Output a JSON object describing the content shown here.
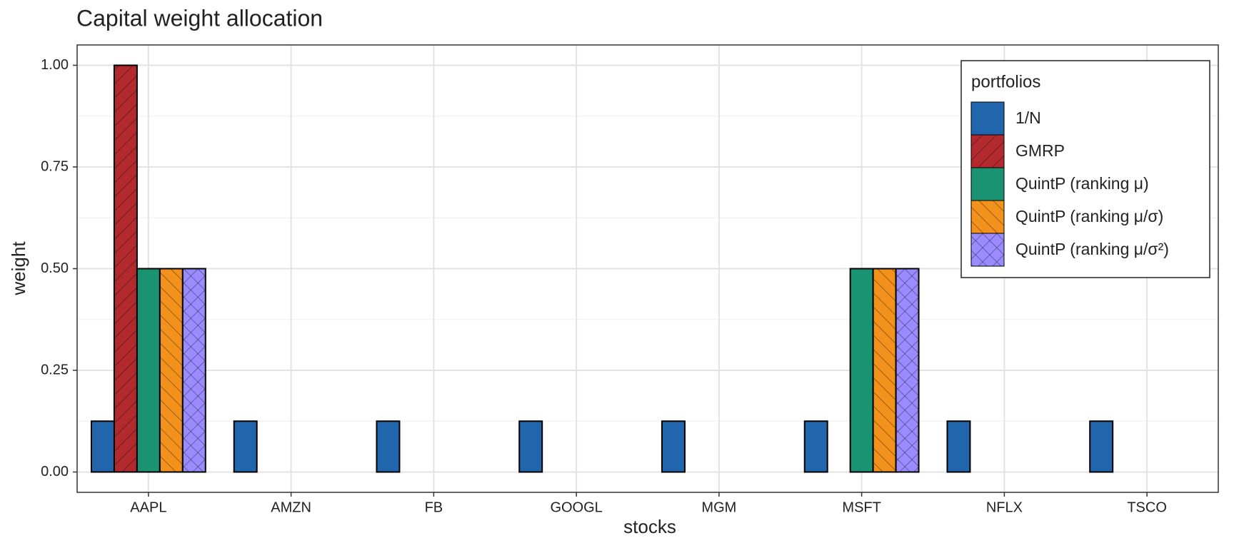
{
  "chart_data": {
    "type": "bar",
    "title": "Capital weight allocation",
    "x_label": "stocks",
    "y_label": "weight",
    "categories": [
      "AAPL",
      "AMZN",
      "FB",
      "GOOGL",
      "MGM",
      "MSFT",
      "NFLX",
      "TSCO"
    ],
    "legend_title": "portfolios",
    "legend_position": "top-right",
    "grid": true,
    "ylim": [
      -0.05,
      1.05
    ],
    "yticks": [
      {
        "value": 0,
        "label": "0.00"
      },
      {
        "value": 0.25,
        "label": "0.25"
      },
      {
        "value": 0.5,
        "label": "0.50"
      },
      {
        "value": 0.75,
        "label": "0.75"
      },
      {
        "value": 1,
        "label": "1.00"
      }
    ],
    "series": [
      {
        "name": "1/N",
        "color": "#2166ac",
        "pattern": "none",
        "values": [
          0.125,
          0.125,
          0.125,
          0.125,
          0.125,
          0.125,
          0.125,
          0.125
        ]
      },
      {
        "name": "GMRP",
        "color": "#b2292e",
        "pattern": "stripe-right",
        "values": [
          1,
          0,
          0,
          0,
          0,
          0,
          0,
          0
        ]
      },
      {
        "name": "QuintP (ranking μ)",
        "color": "#1a9373",
        "pattern": "none",
        "values": [
          0.5,
          0,
          0,
          0,
          0,
          0.5,
          0,
          0
        ]
      },
      {
        "name": "QuintP (ranking μ/σ)",
        "color": "#f2911b",
        "pattern": "stripe-left",
        "values": [
          0.5,
          0,
          0,
          0,
          0,
          0.5,
          0,
          0
        ]
      },
      {
        "name": "QuintP (ranking μ/σ²)",
        "color": "#9a8cff",
        "pattern": "crosshatch",
        "values": [
          0.5,
          0,
          0,
          0,
          0,
          0.5,
          0,
          0
        ]
      }
    ]
  }
}
